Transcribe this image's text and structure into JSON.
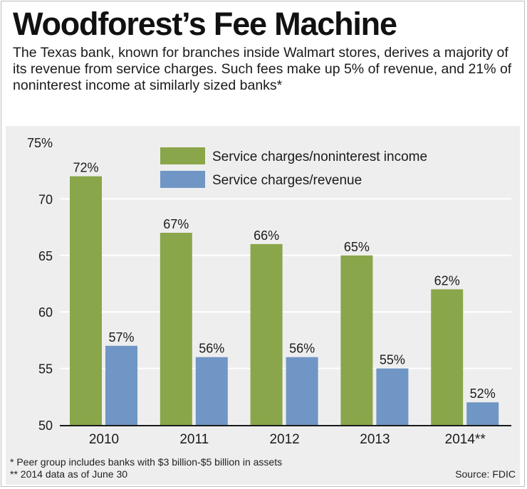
{
  "title": "Woodforest’s Fee Machine",
  "subtitle": "The Texas bank, known for branches inside Walmart stores, derives a majority of its revenue from service charges. Such fees make up 5% of revenue, and 21% of noninterest income at similarly sized banks*",
  "footnotes": {
    "peer": "* Peer group includes banks with $3 billion-$5 billion in assets",
    "date": "** 2014 data as of June 30"
  },
  "source": "Source: FDIC",
  "colors": {
    "green": "#8aa64a",
    "blue": "#6f96c4",
    "panel": "#eeeeee",
    "grid": "#ffffff"
  },
  "chart_data": {
    "type": "bar",
    "categories": [
      "2010",
      "2011",
      "2012",
      "2013",
      "2014**"
    ],
    "series": [
      {
        "name": "Service charges/noninterest income",
        "values": [
          72,
          67,
          66,
          65,
          62
        ],
        "labels": [
          "72%",
          "67%",
          "66%",
          "65%",
          "62%"
        ]
      },
      {
        "name": "Service charges/revenue",
        "values": [
          57,
          56,
          56,
          55,
          52
        ],
        "labels": [
          "57%",
          "56%",
          "56%",
          "55%",
          "52%"
        ]
      }
    ],
    "yticks": [
      "75%",
      "70",
      "65",
      "60",
      "55",
      "50"
    ],
    "ylim": [
      50,
      75
    ],
    "grid": true,
    "legend": "top"
  }
}
